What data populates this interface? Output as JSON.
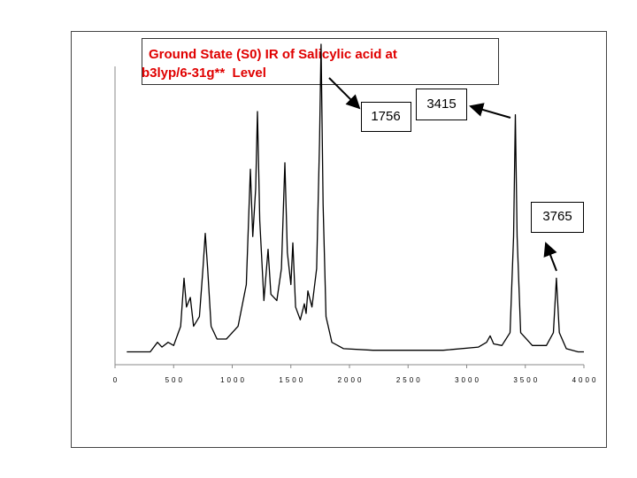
{
  "chart_data": {
    "type": "line",
    "title": [
      "Ground State (S0) IR of Salicylic acid at",
      "b3lyp/6-31g**  Level"
    ],
    "annotations": [
      {
        "text": "1756"
      },
      {
        "text": "3415"
      },
      {
        "text": "3765"
      }
    ],
    "x": [
      100,
      300,
      362,
      400,
      453,
      500,
      560,
      589,
      610,
      642,
      670,
      720,
      750,
      770,
      790,
      820,
      870,
      950,
      1050,
      1120,
      1155,
      1175,
      1200,
      1215,
      1235,
      1270,
      1306,
      1330,
      1380,
      1420,
      1449,
      1470,
      1500,
      1517,
      1540,
      1580,
      1615,
      1630,
      1645,
      1680,
      1720,
      1745,
      1758,
      1775,
      1800,
      1850,
      1950,
      2200,
      2800,
      3100,
      3170,
      3200,
      3230,
      3300,
      3370,
      3400,
      3415,
      3430,
      3460,
      3560,
      3680,
      3740,
      3765,
      3790,
      3850,
      3950,
      4000
    ],
    "series": [
      {
        "color": "#000000",
        "values": [
          4,
          4,
          7,
          5.5,
          7,
          6,
          12,
          27,
          18,
          21,
          12,
          15,
          30,
          41,
          30,
          12,
          8,
          8,
          12,
          25,
          61,
          40,
          55,
          79,
          45,
          20,
          36,
          22,
          20,
          30,
          63,
          35,
          25,
          38,
          18,
          14,
          19,
          16,
          23,
          18,
          30,
          70,
          100,
          50,
          15,
          7,
          5,
          4.5,
          4.5,
          5.5,
          7,
          9,
          6.5,
          6,
          10,
          40,
          78,
          40,
          10,
          6,
          6,
          10,
          27,
          10,
          5,
          4,
          4
        ]
      }
    ],
    "xlim": [
      0,
      4000
    ],
    "xticks": [
      0,
      500,
      1000,
      1500,
      2000,
      2500,
      3000,
      3500,
      4000
    ],
    "ylim": [
      0,
      100
    ]
  }
}
